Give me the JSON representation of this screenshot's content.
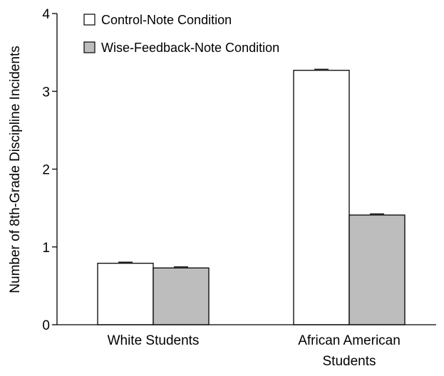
{
  "chart_data": {
    "type": "bar",
    "title": "",
    "xlabel": "",
    "ylabel": "Number of 8th-Grade Discipline Incidents",
    "ylim": [
      0,
      4
    ],
    "yticks": [
      "0",
      "1",
      "2",
      "3",
      "4"
    ],
    "grid": false,
    "legend_position": "top-left",
    "categories": [
      [
        "White Students"
      ],
      [
        "African American",
        "Students"
      ]
    ],
    "series": [
      {
        "name": "Control-Note Condition",
        "values": [
          0.79,
          3.27
        ],
        "color": "#ffffff"
      },
      {
        "name": "Wise-Feedback-Note Condition",
        "values": [
          0.73,
          1.41
        ],
        "color": "#bdbdbd"
      }
    ]
  }
}
